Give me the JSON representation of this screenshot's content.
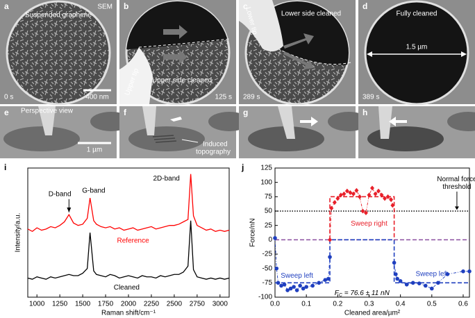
{
  "panels": [
    {
      "letter": "a",
      "texts": [
        "SEM",
        "Suspended graphene",
        "400 nm",
        "0 s"
      ]
    },
    {
      "letter": "b",
      "texts": [
        "Upper tip",
        "Upper side cleaned",
        "125 s"
      ]
    },
    {
      "letter": "c",
      "texts": [
        "Lower tip",
        "Lower side cleaned",
        "289 s"
      ]
    },
    {
      "letter": "d",
      "texts": [
        "Fully cleaned",
        "1.5 µm",
        "389 s"
      ]
    },
    {
      "letter": "e",
      "texts": [
        "Perspective view",
        "1 µm"
      ]
    },
    {
      "letter": "f",
      "texts": [
        "Induced",
        "topography"
      ]
    },
    {
      "letter": "g",
      "texts": []
    },
    {
      "letter": "h",
      "texts": []
    }
  ],
  "chart_data": [
    {
      "type": "line",
      "letter": "i",
      "xlabel": "Raman shift/cm⁻¹",
      "ylabel": "Intensity/a.u.",
      "xlim": [
        900,
        3100
      ],
      "xticks": [
        1000,
        1250,
        1500,
        1750,
        2000,
        2250,
        2500,
        2750,
        3000
      ],
      "ylim": [
        0,
        10.8
      ],
      "x": [
        900,
        950,
        1000,
        1050,
        1100,
        1150,
        1200,
        1250,
        1300,
        1350,
        1400,
        1450,
        1500,
        1550,
        1580,
        1620,
        1650,
        1700,
        1750,
        1800,
        1850,
        1900,
        1950,
        2000,
        2050,
        2100,
        2150,
        2200,
        2250,
        2300,
        2350,
        2400,
        2450,
        2500,
        2550,
        2600,
        2650,
        2680,
        2710,
        2750,
        2800,
        2850,
        2900,
        2950,
        3000,
        3050,
        3100
      ],
      "series": [
        {
          "name": "Reference",
          "color": "#ff0000",
          "values": [
            5.7,
            5.5,
            5.8,
            5.6,
            5.7,
            5.9,
            5.8,
            6.0,
            6.3,
            6.9,
            6.2,
            6.0,
            6.1,
            6.6,
            8.3,
            6.4,
            6.1,
            5.9,
            5.8,
            5.9,
            5.7,
            5.8,
            5.6,
            5.7,
            5.8,
            5.6,
            5.7,
            5.8,
            5.9,
            5.7,
            5.8,
            5.9,
            6.0,
            6.0,
            6.1,
            6.3,
            6.5,
            10.3,
            6.8,
            6.0,
            5.8,
            5.6,
            5.7,
            5.5,
            5.6,
            5.5,
            5.6
          ]
        },
        {
          "name": "Cleaned",
          "color": "#000000",
          "values": [
            1.6,
            1.5,
            1.7,
            1.6,
            1.5,
            1.7,
            1.6,
            1.7,
            1.8,
            1.9,
            1.8,
            1.8,
            2.0,
            2.4,
            5.4,
            2.2,
            1.9,
            1.8,
            1.7,
            1.9,
            1.8,
            1.6,
            1.7,
            1.8,
            1.7,
            1.6,
            1.8,
            1.7,
            1.7,
            1.6,
            1.8,
            1.7,
            1.8,
            1.9,
            1.9,
            2.1,
            2.6,
            6.4,
            2.3,
            1.7,
            1.6,
            1.5,
            1.6,
            1.5,
            1.6,
            1.5,
            1.6
          ]
        }
      ],
      "annotations": [
        "D-band",
        "G-band",
        "2D-band"
      ]
    },
    {
      "type": "scatter",
      "letter": "j",
      "xlabel": "Cleaned area/µm²",
      "ylabel": "Force/nN",
      "xlim": [
        0,
        0.62
      ],
      "xticks": [
        {
          "value": 0,
          "label": "0.0"
        },
        0.1,
        0.2,
        0.3,
        0.4,
        0.5,
        0.6
      ],
      "ylim": [
        -100,
        125
      ],
      "yticks": [
        -100,
        -75,
        -50,
        -25,
        0,
        25,
        50,
        75,
        100,
        125
      ],
      "series": [
        {
          "name": "Sweep right",
          "color": "#e8202a",
          "marker": "diamond",
          "x": [
            0.175,
            0.18,
            0.19,
            0.2,
            0.21,
            0.22,
            0.23,
            0.24,
            0.25,
            0.26,
            0.27,
            0.28,
            0.29,
            0.3,
            0.31,
            0.32,
            0.33,
            0.34,
            0.35,
            0.36,
            0.37,
            0.375
          ],
          "values": [
            0,
            55,
            65,
            72,
            78,
            80,
            85,
            82,
            80,
            86,
            75,
            50,
            47,
            78,
            90,
            80,
            85,
            78,
            72,
            75,
            70,
            60
          ]
        },
        {
          "name": "Sweep left",
          "color": "#1f3fbf",
          "marker": "circle",
          "x": [
            0,
            0.005,
            0.01,
            0.02,
            0.03,
            0.04,
            0.05,
            0.06,
            0.07,
            0.08,
            0.09,
            0.1,
            0.12,
            0.14,
            0.16,
            0.17,
            0.175,
            0.27,
            0.38,
            0.385,
            0.39,
            0.4,
            0.42,
            0.44,
            0.46,
            0.48,
            0.5,
            0.52,
            0.55,
            0.6,
            0.62
          ],
          "values": [
            3,
            -50,
            -75,
            -80,
            -78,
            -88,
            -85,
            -82,
            -88,
            -80,
            -85,
            -82,
            -80,
            -75,
            -70,
            -68,
            -30,
            null,
            -40,
            -60,
            -68,
            -72,
            -78,
            -75,
            -76,
            -80,
            -85,
            -75,
            -60,
            -55,
            -55
          ]
        }
      ],
      "fits": [
        {
          "color": "#e8202a",
          "x": [
            0.175,
            0.175,
            0.38,
            0.38
          ],
          "values": [
            0,
            75,
            75,
            0
          ]
        },
        {
          "color": "#1f3fbf",
          "x": [
            0,
            0.175,
            0.175,
            0.38,
            0.38,
            0.62
          ],
          "values": [
            -75,
            -75,
            0,
            0,
            -75,
            -75
          ]
        }
      ],
      "hlines": [
        {
          "value": 50,
          "color": "#000000",
          "dash": "1.5 2"
        },
        {
          "value": 0,
          "color": "#8a4fa0",
          "dash": "6 3"
        }
      ],
      "annotations": [
        "Normal force",
        "threshold",
        "Sweep left"
      ],
      "fc": {
        "symbol": "F",
        "subscript": "C",
        "text": " = 76.6 ± 11 nN"
      }
    }
  ]
}
